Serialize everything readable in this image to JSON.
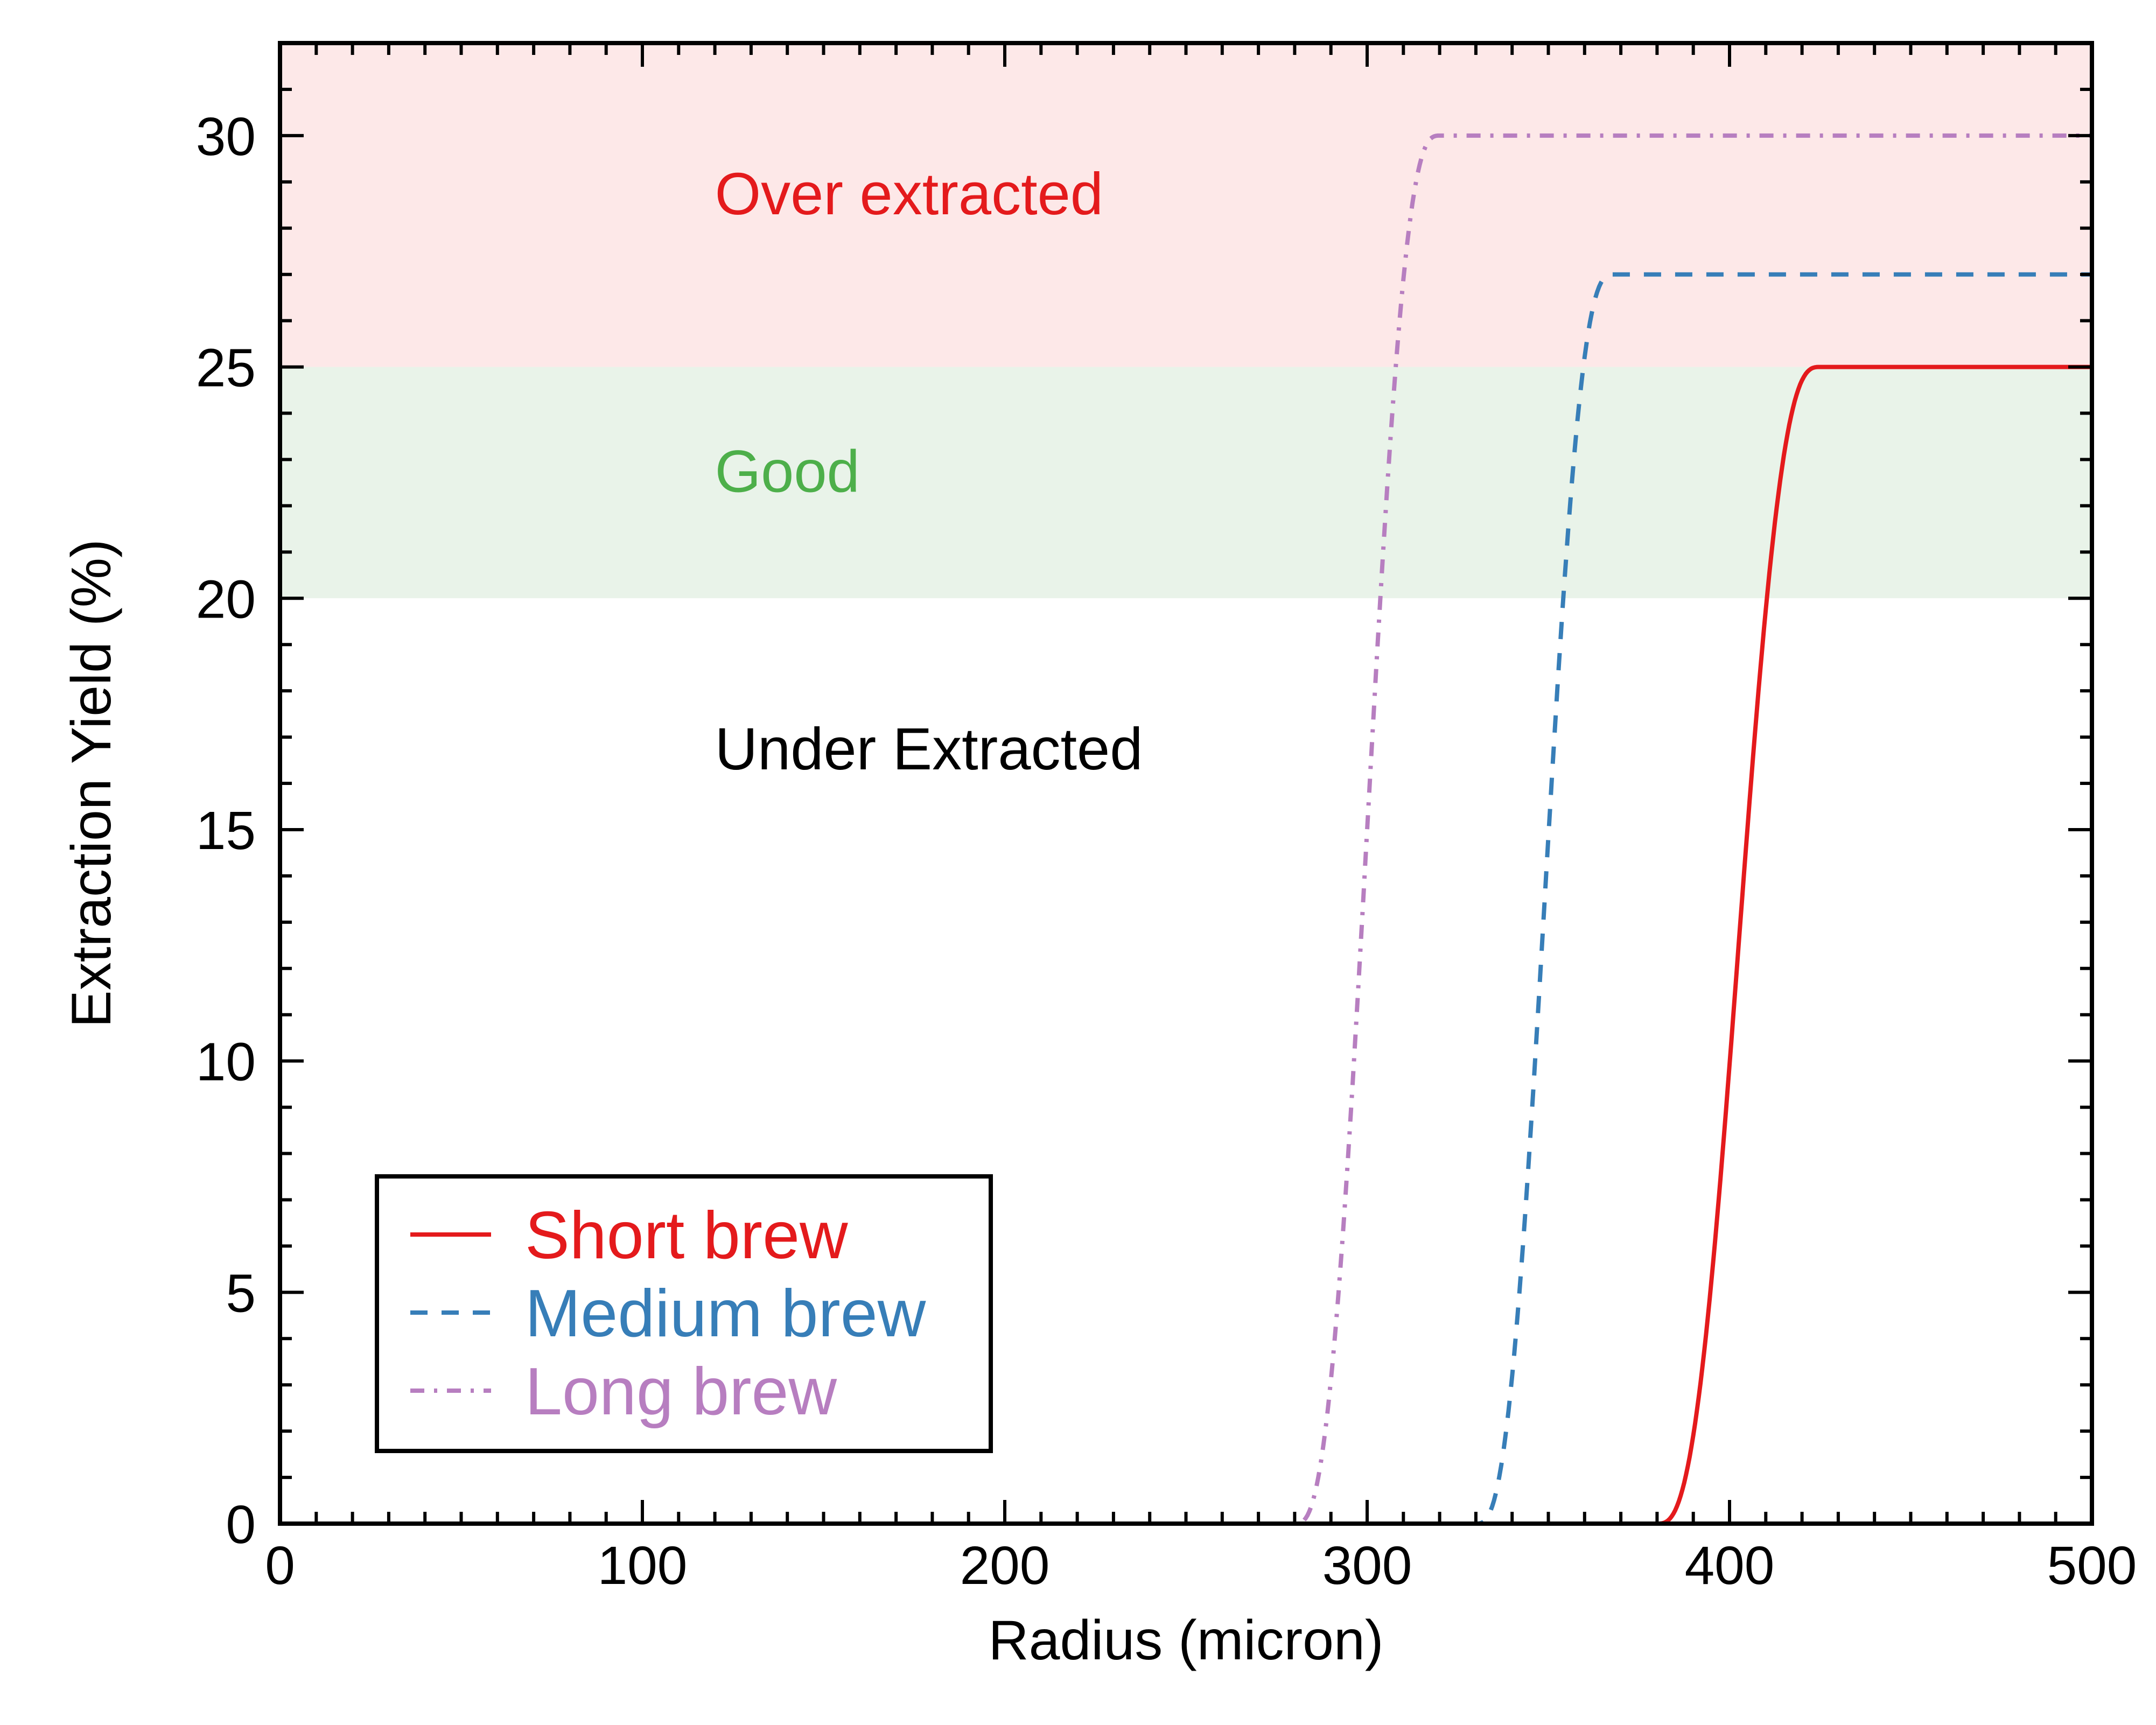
{
  "chart_data": {
    "type": "line",
    "title": "",
    "xlabel": "Radius (micron)",
    "ylabel": "Extraction Yield (%)",
    "xlim": [
      0,
      500
    ],
    "ylim": [
      0,
      32
    ],
    "x_ticks": [
      0,
      100,
      200,
      300,
      400,
      500
    ],
    "y_ticks": [
      0,
      5,
      10,
      15,
      20,
      25,
      30
    ],
    "grid": false,
    "regions": [
      {
        "name": "over",
        "label": "Over extracted",
        "y_from": 25,
        "y_to": 32,
        "fill": "#fde8e8",
        "text_color": "#e41a1c",
        "label_x": 120,
        "label_y": 28.3
      },
      {
        "name": "good",
        "label": "Good",
        "y_from": 20,
        "y_to": 25,
        "fill": "#e9f3e9",
        "text_color": "#4daf4a",
        "label_x": 120,
        "label_y": 22.3
      },
      {
        "name": "under",
        "label": "Under Extracted",
        "y_from": 0,
        "y_to": 20,
        "fill": "#ffffff",
        "text_color": "#000000",
        "label_x": 120,
        "label_y": 16.3
      }
    ],
    "series": [
      {
        "name": "Short brew",
        "color": "#e41a1c",
        "dash": "solid",
        "start_x": 380,
        "end_x": 425,
        "plateau_y": 25
      },
      {
        "name": "Medium brew",
        "color": "#377eb8",
        "dash": "dashed",
        "start_x": 330,
        "end_x": 368,
        "plateau_y": 27
      },
      {
        "name": "Long brew",
        "color": "#b77ec0",
        "dash": "dashdot",
        "start_x": 280,
        "end_x": 320,
        "plateau_y": 30
      }
    ],
    "legend": {
      "position": "bottom-left"
    }
  }
}
